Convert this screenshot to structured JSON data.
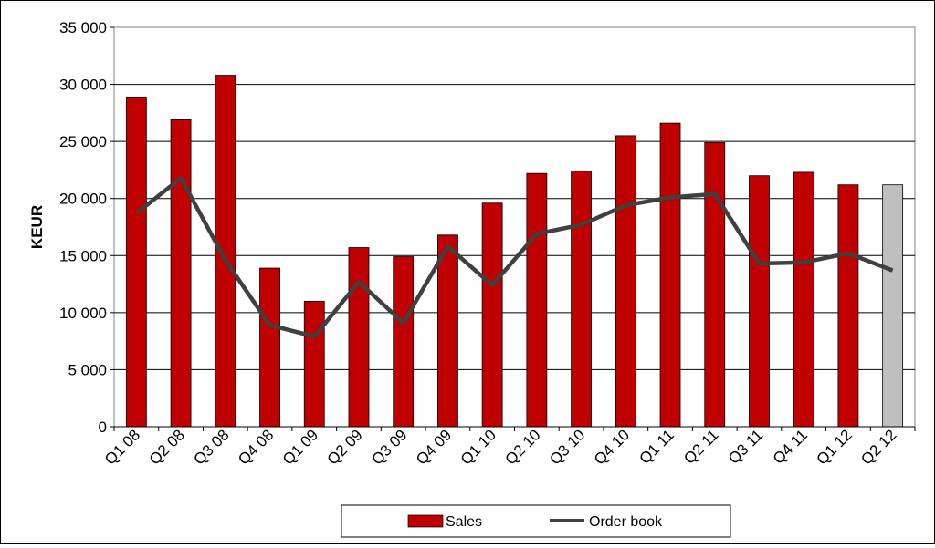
{
  "chart_data": {
    "type": "bar",
    "title": "",
    "xlabel": "",
    "ylabel": "KEUR",
    "ylim": [
      0,
      35000
    ],
    "yticks": [
      0,
      5000,
      10000,
      15000,
      20000,
      25000,
      30000,
      35000
    ],
    "ytick_labels": [
      "0",
      "5 000",
      "10 000",
      "15 000",
      "20 000",
      "25 000",
      "30 000",
      "35 000"
    ],
    "categories": [
      "Q1 08",
      "Q2 08",
      "Q3 08",
      "Q4 08",
      "Q1 09",
      "Q2 09",
      "Q3 09",
      "Q4 09",
      "Q1 10",
      "Q2 10",
      "Q3 10",
      "Q4 10",
      "Q1 11",
      "Q2 11",
      "Q3 11",
      "Q4 11",
      "Q1 12",
      "Q2 12"
    ],
    "grid": true,
    "legend_position": "bottom",
    "series": [
      {
        "name": "Sales",
        "kind": "bar",
        "color": "#C00000",
        "highlight_color": "#BFBFBF",
        "highlight_index": 17,
        "values": [
          28900,
          26900,
          30800,
          13900,
          11000,
          15700,
          14900,
          16800,
          19600,
          22200,
          22400,
          25500,
          26600,
          24900,
          22000,
          22300,
          21200,
          21200
        ]
      },
      {
        "name": "Order book",
        "kind": "line",
        "color": "#404040",
        "values": [
          18700,
          21800,
          14600,
          8900,
          7900,
          12700,
          9100,
          15800,
          12400,
          16900,
          17700,
          19400,
          20100,
          20400,
          14300,
          14400,
          15200,
          13700
        ]
      }
    ]
  }
}
